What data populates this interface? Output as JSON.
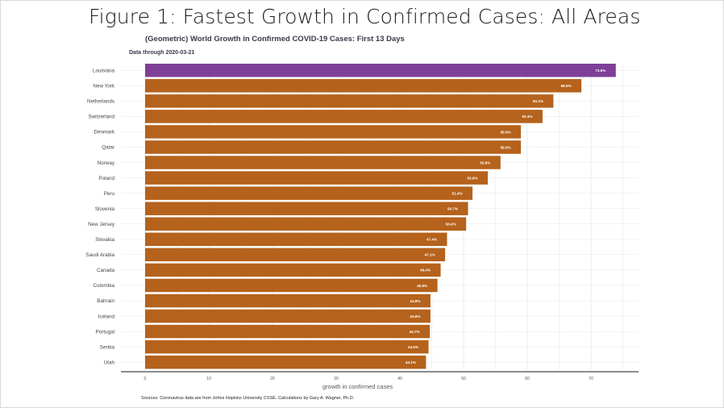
{
  "slide": {
    "title": "Figure 1: Fastest Growth in Confirmed Cases: All Areas"
  },
  "footer": {
    "source": "Sources: Coronavirus data are from Johns Hopkins University CSSE. Calculations by Gary A. Wagner, Ph.D."
  },
  "colors": {
    "highlight": "#7f3f98",
    "bar": "#b5621c",
    "bar_label": "#ffffff",
    "grid": "#e6e6e6",
    "axis": "#666666"
  },
  "chart_data": {
    "type": "bar",
    "orientation": "horizontal",
    "title": "(Geometric) World Growth in Confirmed COVID-19 Cases: First 13 Days",
    "subtitle": "Data through 2020-03-21",
    "xlabel": "growth in confirmed cases",
    "ylabel": "",
    "xlim": [
      0,
      75
    ],
    "xticks": [
      0,
      10,
      20,
      30,
      40,
      50,
      60,
      70
    ],
    "grid": true,
    "highlight_category": "Louisiana",
    "categories": [
      "Louisiana",
      "New York",
      "Netherlands",
      "Switzerland",
      "Denmark",
      "Qatar",
      "Norway",
      "Poland",
      "Peru",
      "Slovenia",
      "New Jersey",
      "Slovakia",
      "Saudi Arabia",
      "Canada",
      "Colombia",
      "Bahrain",
      "Iceland",
      "Portugal",
      "Serbia",
      "Utah"
    ],
    "values": [
      73.9,
      68.5,
      64.1,
      62.4,
      59.0,
      59.0,
      55.8,
      53.8,
      51.4,
      50.7,
      50.4,
      47.4,
      47.1,
      46.4,
      45.9,
      44.8,
      44.8,
      44.7,
      44.5,
      44.1
    ],
    "value_labels": [
      "73.9%",
      "68.5%",
      "64.1%",
      "62.4%",
      "59.0%",
      "59.0%",
      "55.8%",
      "53.8%",
      "51.4%",
      "50.7%",
      "50.4%",
      "47.4%",
      "47.1%",
      "46.4%",
      "45.9%",
      "44.8%",
      "44.8%",
      "44.7%",
      "44.5%",
      "44.1%"
    ]
  }
}
